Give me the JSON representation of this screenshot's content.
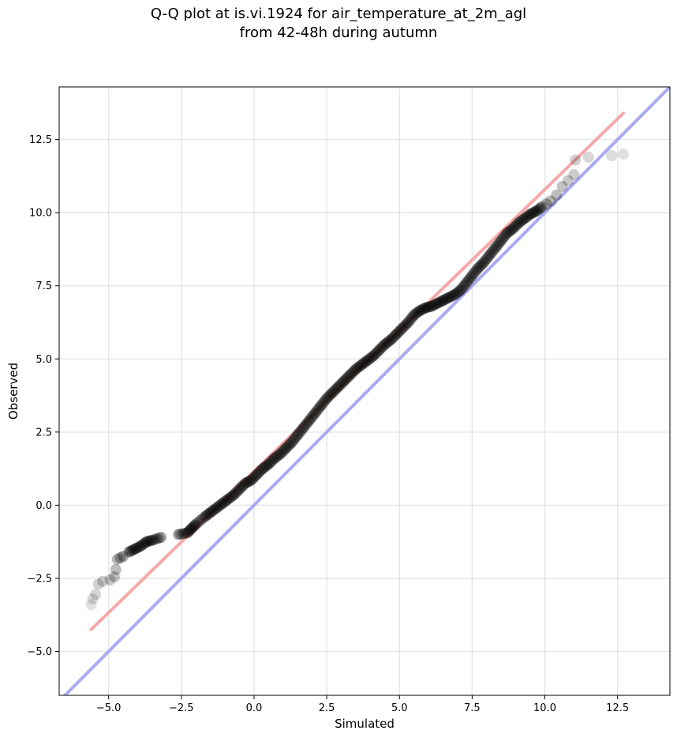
{
  "chart_data": {
    "type": "scatter",
    "title_line1": "Q-Q plot at is.vi.1924 for air_temperature_at_2m_agl",
    "title_line2": "from 42-48h during autumn",
    "xlabel": "Simulated",
    "ylabel": "Observed",
    "xlim": [
      -6.7,
      14.3
    ],
    "ylim": [
      -6.5,
      14.3
    ],
    "xticks": [
      -5.0,
      -2.5,
      0.0,
      2.5,
      5.0,
      7.5,
      10.0,
      12.5
    ],
    "yticks": [
      -5.0,
      -2.5,
      0.0,
      2.5,
      5.0,
      7.5,
      10.0,
      12.5
    ],
    "xtick_labels": [
      "−5.0",
      "−2.5",
      "0.0",
      "2.5",
      "5.0",
      "7.5",
      "10.0",
      "12.5"
    ],
    "ytick_labels": [
      "−5.0",
      "−2.5",
      "0.0",
      "2.5",
      "5.0",
      "7.5",
      "10.0",
      "12.5"
    ],
    "grid": true,
    "reference_line": {
      "color": "#aaaaf2",
      "x": [
        -6.7,
        14.3
      ],
      "y": [
        -6.7,
        14.3
      ]
    },
    "fit_line": {
      "color": "#f5a9a9",
      "x": [
        -5.6,
        12.7
      ],
      "y": [
        -4.25,
        13.4
      ]
    },
    "point_color": "#000000",
    "points": {
      "x": [
        -5.6,
        -5.55,
        -5.45,
        -5.35,
        -5.2,
        -4.95,
        -4.8,
        -4.75,
        -4.7,
        -4.6,
        -4.5,
        -4.3,
        -4.1,
        -3.9,
        -3.7,
        -3.5,
        -3.2,
        -2.6,
        -2.3,
        -2.15,
        -2.0,
        -1.7,
        -1.5,
        -1.3,
        -1.1,
        -0.9,
        -0.7,
        -0.5,
        -0.3,
        -0.1,
        0.1,
        0.3,
        0.5,
        0.7,
        0.9,
        1.1,
        1.3,
        1.5,
        1.7,
        1.9,
        2.1,
        2.3,
        2.5,
        2.7,
        2.9,
        3.1,
        3.3,
        3.5,
        3.7,
        3.9,
        4.1,
        4.3,
        4.5,
        4.7,
        4.9,
        5.1,
        5.3,
        5.5,
        5.7,
        5.9,
        6.1,
        6.3,
        6.5,
        6.7,
        6.9,
        7.1,
        7.3,
        7.5,
        7.7,
        7.9,
        8.1,
        8.3,
        8.5,
        8.7,
        8.9,
        9.1,
        9.3,
        9.5,
        9.7,
        9.9,
        10.05,
        10.2,
        10.4,
        10.6,
        10.8,
        11.0,
        11.05,
        11.5,
        12.3,
        12.7
      ],
      "y": [
        -3.4,
        -3.2,
        -3.05,
        -2.7,
        -2.6,
        -2.55,
        -2.45,
        -2.2,
        -1.85,
        -1.8,
        -1.75,
        -1.6,
        -1.5,
        -1.4,
        -1.25,
        -1.2,
        -1.1,
        -1.0,
        -0.95,
        -0.8,
        -0.65,
        -0.4,
        -0.25,
        -0.1,
        0.05,
        0.2,
        0.35,
        0.55,
        0.75,
        0.85,
        1.05,
        1.25,
        1.4,
        1.6,
        1.75,
        1.95,
        2.15,
        2.4,
        2.65,
        2.9,
        3.15,
        3.4,
        3.65,
        3.85,
        4.05,
        4.25,
        4.45,
        4.65,
        4.8,
        4.95,
        5.1,
        5.3,
        5.5,
        5.65,
        5.85,
        6.05,
        6.25,
        6.5,
        6.65,
        6.75,
        6.8,
        6.9,
        7.0,
        7.1,
        7.2,
        7.35,
        7.6,
        7.85,
        8.1,
        8.3,
        8.55,
        8.8,
        9.05,
        9.3,
        9.45,
        9.65,
        9.8,
        9.95,
        10.05,
        10.2,
        10.3,
        10.4,
        10.6,
        10.9,
        11.1,
        11.3,
        11.8,
        11.9,
        11.95,
        12.0
      ]
    }
  }
}
